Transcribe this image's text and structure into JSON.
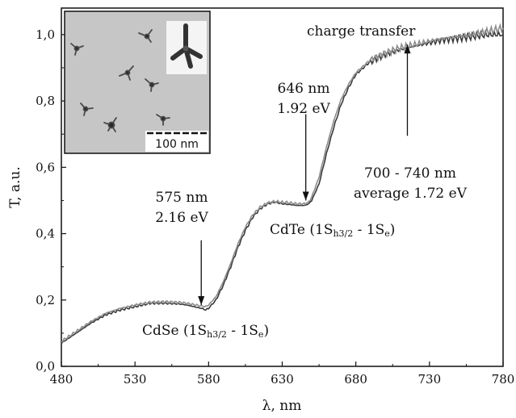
{
  "chart_data": {
    "type": "line",
    "xlabel": "λ, nm",
    "ylabel": "T, a.u.",
    "xlim": [
      480,
      780
    ],
    "ylim": [
      0.0,
      1.08
    ],
    "xticks": [
      "480",
      "530",
      "580",
      "630",
      "680",
      "730",
      "780"
    ],
    "yticks": [
      "0,0",
      "0,2",
      "0,4",
      "0,6",
      "0,8",
      "1,0"
    ],
    "grid": false,
    "series": [
      {
        "color": "#3a3a3a",
        "x": [
          480,
          490,
          500,
          510,
          520,
          530,
          540,
          550,
          560,
          565,
          570,
          575,
          578,
          580,
          585,
          590,
          595,
          600,
          605,
          610,
          615,
          620,
          625,
          630,
          635,
          640,
          645,
          648,
          650,
          655,
          660,
          665,
          670,
          675,
          680,
          690,
          700,
          710,
          720,
          730,
          740,
          750,
          760,
          770,
          780
        ],
        "y": [
          0.07,
          0.1,
          0.13,
          0.155,
          0.17,
          0.18,
          0.19,
          0.19,
          0.188,
          0.185,
          0.18,
          0.175,
          0.17,
          0.175,
          0.2,
          0.245,
          0.3,
          0.36,
          0.41,
          0.45,
          0.475,
          0.49,
          0.495,
          0.49,
          0.488,
          0.485,
          0.485,
          0.49,
          0.5,
          0.55,
          0.64,
          0.72,
          0.79,
          0.84,
          0.88,
          0.92,
          0.94,
          0.955,
          0.965,
          0.975,
          0.985,
          0.99,
          0.995,
          1.0,
          1.0
        ]
      },
      {
        "color": "#8c8c8c",
        "x": [
          480,
          490,
          500,
          510,
          520,
          530,
          540,
          550,
          560,
          565,
          570,
          575,
          578,
          580,
          585,
          590,
          595,
          600,
          605,
          610,
          615,
          620,
          625,
          630,
          635,
          640,
          645,
          648,
          650,
          655,
          660,
          665,
          670,
          675,
          680,
          690,
          700,
          710,
          720,
          730,
          740,
          750,
          760,
          770,
          780
        ],
        "y": [
          0.075,
          0.105,
          0.135,
          0.16,
          0.175,
          0.185,
          0.193,
          0.195,
          0.193,
          0.19,
          0.186,
          0.182,
          0.18,
          0.185,
          0.21,
          0.255,
          0.31,
          0.37,
          0.42,
          0.457,
          0.48,
          0.492,
          0.497,
          0.495,
          0.493,
          0.49,
          0.49,
          0.495,
          0.51,
          0.57,
          0.66,
          0.74,
          0.805,
          0.85,
          0.885,
          0.925,
          0.945,
          0.96,
          0.97,
          0.98,
          0.99,
          0.995,
          1.0,
          1.01,
          1.02
        ]
      }
    ],
    "annotations": [
      {
        "lines": [
          "575 nm",
          "2.16 eV"
        ],
        "arrow_x": 575,
        "arrow_y_from": 0.38,
        "arrow_y_to": 0.185
      },
      {
        "lines": [
          "646 nm",
          "1.92 eV"
        ],
        "arrow_x": 646,
        "arrow_y_from": 0.76,
        "arrow_y_to": 0.5
      },
      {
        "lines": [
          "700 - 740 nm",
          "average 1.72 eV"
        ],
        "arrow_x": 715,
        "arrow_y_from": 0.695,
        "arrow_y_to": 0.97
      },
      {
        "lines": [
          "charge transfer"
        ]
      }
    ],
    "band_labels": [
      {
        "main": "CdSe (1S",
        "sub1": "h3/2",
        "mid": " - 1S",
        "sub2": "e",
        "end": ")"
      },
      {
        "main": "CdTe (1S",
        "sub1": "h3/2",
        "mid": " - 1S",
        "sub2": "e",
        "end": ")"
      }
    ]
  },
  "inset": {
    "scale_bar_label": "100 nm"
  }
}
